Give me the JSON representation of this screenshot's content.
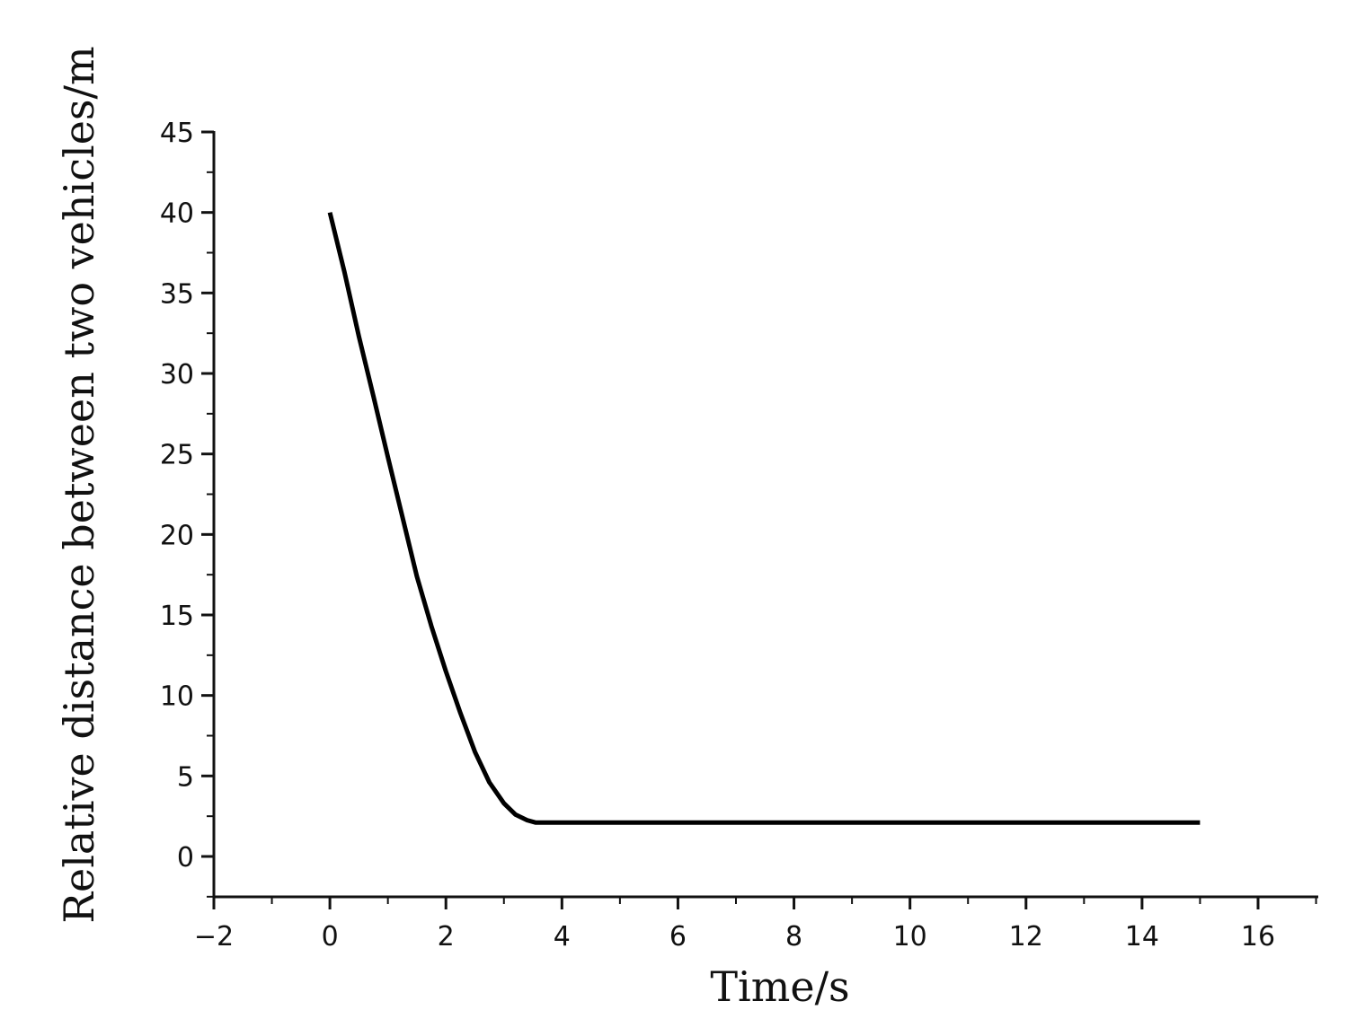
{
  "chart_data": {
    "type": "line",
    "xlabel": "Time/s",
    "ylabel": "Relative distance between two vehicles/m",
    "xlim": [
      -2,
      17
    ],
    "ylim": [
      -2.5,
      45
    ],
    "xticks": [
      -2,
      0,
      2,
      4,
      6,
      8,
      10,
      12,
      14,
      16
    ],
    "xtick_labels": [
      "−2",
      "0",
      "2",
      "4",
      "6",
      "8",
      "10",
      "12",
      "14",
      "16"
    ],
    "yticks": [
      0,
      5,
      10,
      15,
      20,
      25,
      30,
      35,
      40,
      45
    ],
    "ytick_labels": [
      "0",
      "5",
      "10",
      "15",
      "20",
      "25",
      "30",
      "35",
      "40",
      "45"
    ],
    "grid": false,
    "series": [
      {
        "color": "#000000",
        "x": [
          0,
          0.25,
          0.5,
          0.75,
          1.0,
          1.25,
          1.5,
          1.75,
          2.0,
          2.25,
          2.5,
          2.75,
          3.0,
          3.2,
          3.4,
          3.55,
          3.7,
          4.0,
          5.0,
          6.0,
          8.0,
          10.0,
          12.0,
          14.0,
          15.0
        ],
        "y": [
          40.0,
          36.3,
          32.3,
          28.6,
          24.8,
          21.1,
          17.4,
          14.3,
          11.5,
          8.9,
          6.5,
          4.6,
          3.3,
          2.6,
          2.25,
          2.1,
          2.1,
          2.1,
          2.1,
          2.1,
          2.1,
          2.1,
          2.1,
          2.1,
          2.1
        ]
      }
    ]
  }
}
